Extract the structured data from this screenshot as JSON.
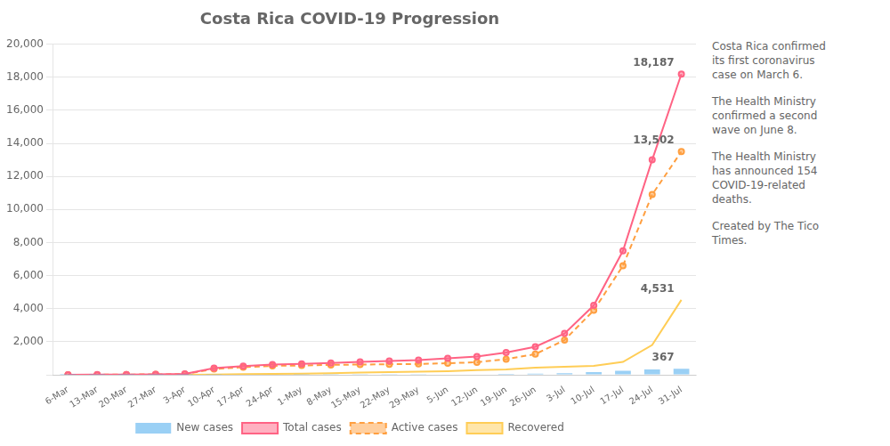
{
  "chart_data": {
    "type": "bar",
    "title": "Costa Rica COVID-19 Progression",
    "categories": [
      "6-Mar",
      "13-Mar",
      "20-Mar",
      "27-Mar",
      "3-Apr",
      "10-Apr",
      "17-Apr",
      "24-Apr",
      "1-May",
      "8-May",
      "15-May",
      "22-May",
      "29-May",
      "5-Jun",
      "12-Jun",
      "19-Jun",
      "26-Jun",
      "3-Jul",
      "10-Jul",
      "17-Jul",
      "24-Jul",
      "31-Jul"
    ],
    "series": [
      {
        "name": "New cases",
        "type": "bar",
        "values": [
          1,
          4,
          5,
          5,
          5,
          20,
          30,
          25,
          20,
          20,
          20,
          20,
          20,
          25,
          30,
          50,
          70,
          100,
          160,
          250,
          320,
          367
        ]
      },
      {
        "name": "Total cases",
        "type": "line",
        "marker": "circle",
        "line_style": "solid",
        "values": [
          1,
          9,
          22,
          35,
          50,
          400,
          530,
          620,
          660,
          720,
          780,
          840,
          895,
          1000,
          1100,
          1350,
          1700,
          2500,
          4200,
          7500,
          13000,
          18187
        ]
      },
      {
        "name": "Active cases",
        "type": "line",
        "marker": "circle",
        "line_style": "dashed",
        "values": [
          1,
          8,
          18,
          28,
          42,
          350,
          460,
          540,
          565,
          600,
          620,
          640,
          655,
          700,
          760,
          950,
          1250,
          2100,
          3900,
          6600,
          10900,
          13502
        ]
      },
      {
        "name": "Recovered",
        "type": "line",
        "marker": "none",
        "line_style": "solid",
        "values": [
          0,
          0,
          2,
          4,
          5,
          20,
          40,
          55,
          70,
          90,
          130,
          160,
          185,
          220,
          285,
          330,
          430,
          480,
          540,
          780,
          1800,
          4531
        ]
      }
    ],
    "ylim": [
      0,
      20000
    ],
    "yticks": [
      {
        "value": 0,
        "label": ""
      },
      {
        "value": 2000,
        "label": "2,000"
      },
      {
        "value": 4000,
        "label": "4,000"
      },
      {
        "value": 6000,
        "label": "6,000"
      },
      {
        "value": 8000,
        "label": "8,000"
      },
      {
        "value": 10000,
        "label": "10,000"
      },
      {
        "value": 12000,
        "label": "12,000"
      },
      {
        "value": 14000,
        "label": "14,000"
      },
      {
        "value": 16000,
        "label": "16,000"
      },
      {
        "value": 18000,
        "label": "18,000"
      },
      {
        "value": 20000,
        "label": "20,000"
      }
    ],
    "grid": "y",
    "legend": "bottom",
    "annotations": [
      {
        "text": "18,187",
        "series": "Total cases"
      },
      {
        "text": "13,502",
        "series": "Active cases"
      },
      {
        "text": "4,531",
        "series": "Recovered"
      },
      {
        "text": "367",
        "series": "New cases"
      },
      {
        "lines": [
          "Costa Rica confirmed",
          "its first coronavirus",
          "case on March 6."
        ]
      },
      {
        "lines": [
          "The Health Ministry",
          "confirmed a second",
          "wave on June 8."
        ]
      },
      {
        "lines": [
          "The Health Ministry",
          "has announced 154",
          "COVID-19-related",
          "deaths."
        ]
      },
      {
        "lines": [
          "Created by The Tico",
          "Times."
        ]
      }
    ]
  }
}
